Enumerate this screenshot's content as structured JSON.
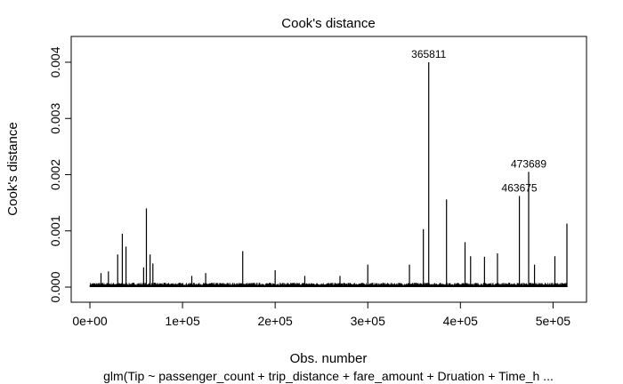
{
  "chart_data": {
    "type": "line",
    "title": "Cook's distance",
    "xlabel": "Obs. number",
    "ylabel": "Cook's distance",
    "subtitle": "glm(Tip ~ passenger_count + trip_distance + fare_amount + Druation + Time_h ...",
    "xlim": [
      0,
      520000
    ],
    "ylim": [
      0,
      0.0042
    ],
    "x_ticks": [
      0,
      100000,
      200000,
      300000,
      400000,
      500000
    ],
    "x_tick_labels": [
      "0e+00",
      "1e+05",
      "2e+05",
      "3e+05",
      "4e+05",
      "5e+05"
    ],
    "y_ticks": [
      0.0,
      0.001,
      0.002,
      0.003,
      0.004
    ],
    "y_tick_labels": [
      "0.000",
      "0.001",
      "0.002",
      "0.003",
      "0.004"
    ],
    "grid": false,
    "color": "#000000",
    "baseline_max": 8e-05,
    "spikes": [
      {
        "x": 30000,
        "y": 0.00058
      },
      {
        "x": 35000,
        "y": 0.00095
      },
      {
        "x": 39000,
        "y": 0.00072
      },
      {
        "x": 58000,
        "y": 0.00035
      },
      {
        "x": 61000,
        "y": 0.0014
      },
      {
        "x": 65000,
        "y": 0.00058
      },
      {
        "x": 68000,
        "y": 0.00042
      },
      {
        "x": 12000,
        "y": 0.00025
      },
      {
        "x": 20000,
        "y": 0.00028
      },
      {
        "x": 110000,
        "y": 0.0002
      },
      {
        "x": 125000,
        "y": 0.00025
      },
      {
        "x": 165000,
        "y": 0.00064
      },
      {
        "x": 200000,
        "y": 0.0003
      },
      {
        "x": 232000,
        "y": 0.0002
      },
      {
        "x": 270000,
        "y": 0.0002
      },
      {
        "x": 300000,
        "y": 0.0004
      },
      {
        "x": 345000,
        "y": 0.0004
      },
      {
        "x": 360000,
        "y": 0.00103
      },
      {
        "x": 365811,
        "y": 0.004
      },
      {
        "x": 385000,
        "y": 0.00156
      },
      {
        "x": 405000,
        "y": 0.0008
      },
      {
        "x": 411000,
        "y": 0.00055
      },
      {
        "x": 426000,
        "y": 0.00054
      },
      {
        "x": 440000,
        "y": 0.0006
      },
      {
        "x": 463675,
        "y": 0.00162
      },
      {
        "x": 473689,
        "y": 0.00205
      },
      {
        "x": 480000,
        "y": 0.0004
      },
      {
        "x": 502000,
        "y": 0.00055
      },
      {
        "x": 515000,
        "y": 0.00113
      }
    ],
    "annotations": [
      {
        "x": 365811,
        "y": 0.004,
        "text": "365811"
      },
      {
        "x": 473689,
        "y": 0.00205,
        "text": "473689"
      },
      {
        "x": 463675,
        "y": 0.00162,
        "text": "463675"
      }
    ]
  }
}
